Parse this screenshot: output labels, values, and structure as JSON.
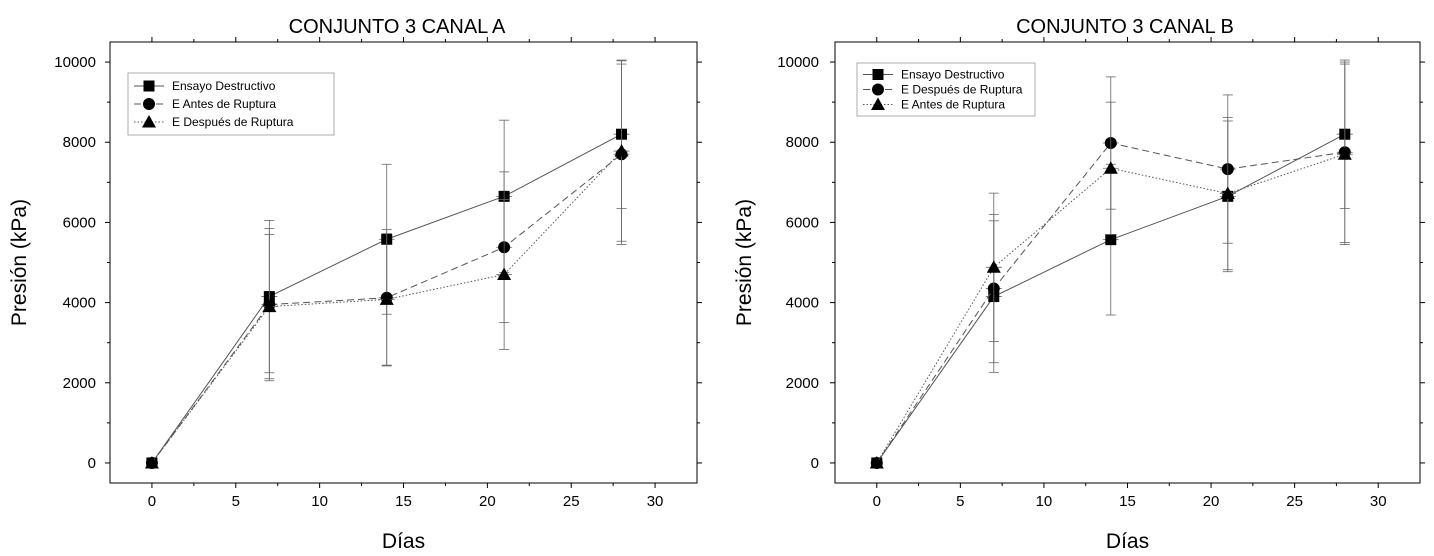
{
  "chart_data": [
    {
      "type": "line",
      "title": "CONJUNTO 3 CANAL A",
      "xlabel": "Días",
      "ylabel": "Presión (kPa)",
      "xlim": [
        -2.5,
        32.5
      ],
      "ylim": [
        -500,
        10500
      ],
      "xticks": [
        0,
        5,
        10,
        15,
        20,
        25,
        30
      ],
      "yticks": [
        0,
        2000,
        4000,
        6000,
        8000,
        10000
      ],
      "legend": "top-left",
      "series": [
        {
          "name": "Ensayo Destructivo",
          "marker": "square",
          "dash": "",
          "x": [
            0,
            7,
            14,
            21,
            28
          ],
          "y": [
            0,
            4150,
            5580,
            6650,
            8200
          ],
          "err": [
            0,
            1900,
            1870,
            1900,
            1850
          ]
        },
        {
          "name": "E  Antes de Ruptura",
          "marker": "circle",
          "dash": "7,4",
          "x": [
            0,
            7,
            14,
            21,
            28
          ],
          "y": [
            0,
            3950,
            4120,
            5380,
            7700
          ],
          "err": [
            0,
            1900,
            1700,
            1880,
            2250
          ]
        },
        {
          "name": "E Después de Ruptura",
          "marker": "triangle",
          "dash": "1.5,2",
          "x": [
            0,
            7,
            14,
            21,
            28
          ],
          "y": [
            0,
            3900,
            4080,
            4700,
            7780
          ],
          "err": [
            0,
            1800,
            1640,
            1870,
            2250
          ]
        }
      ]
    },
    {
      "type": "line",
      "title": "CONJUNTO 3 CANAL B",
      "xlabel": "Días",
      "ylabel": "Presión (kPa)",
      "xlim": [
        -2.5,
        32.5
      ],
      "ylim": [
        -500,
        10500
      ],
      "xticks": [
        0,
        5,
        10,
        15,
        20,
        25,
        30
      ],
      "yticks": [
        0,
        2000,
        4000,
        6000,
        8000,
        10000
      ],
      "legend": "top-left",
      "series": [
        {
          "name": "Ensayo Destructivo",
          "marker": "square",
          "dash": "",
          "x": [
            0,
            7,
            14,
            21,
            28
          ],
          "y": [
            0,
            4150,
            5570,
            6650,
            8200
          ],
          "err": [
            0,
            1890,
            1880,
            1880,
            1850
          ]
        },
        {
          "name": "E Después de Ruptura",
          "marker": "circle",
          "dash": "7,4",
          "x": [
            0,
            7,
            14,
            21,
            28
          ],
          "y": [
            0,
            4350,
            7980,
            7330,
            7750
          ],
          "err": [
            0,
            1850,
            1650,
            1850,
            2250
          ]
        },
        {
          "name": "E  Antes de Ruptura",
          "marker": "triangle",
          "dash": "1.5,2",
          "x": [
            0,
            7,
            14,
            21,
            28
          ],
          "y": [
            0,
            4880,
            7350,
            6720,
            7700
          ],
          "err": [
            0,
            1850,
            1650,
            1900,
            2250
          ]
        }
      ]
    }
  ]
}
